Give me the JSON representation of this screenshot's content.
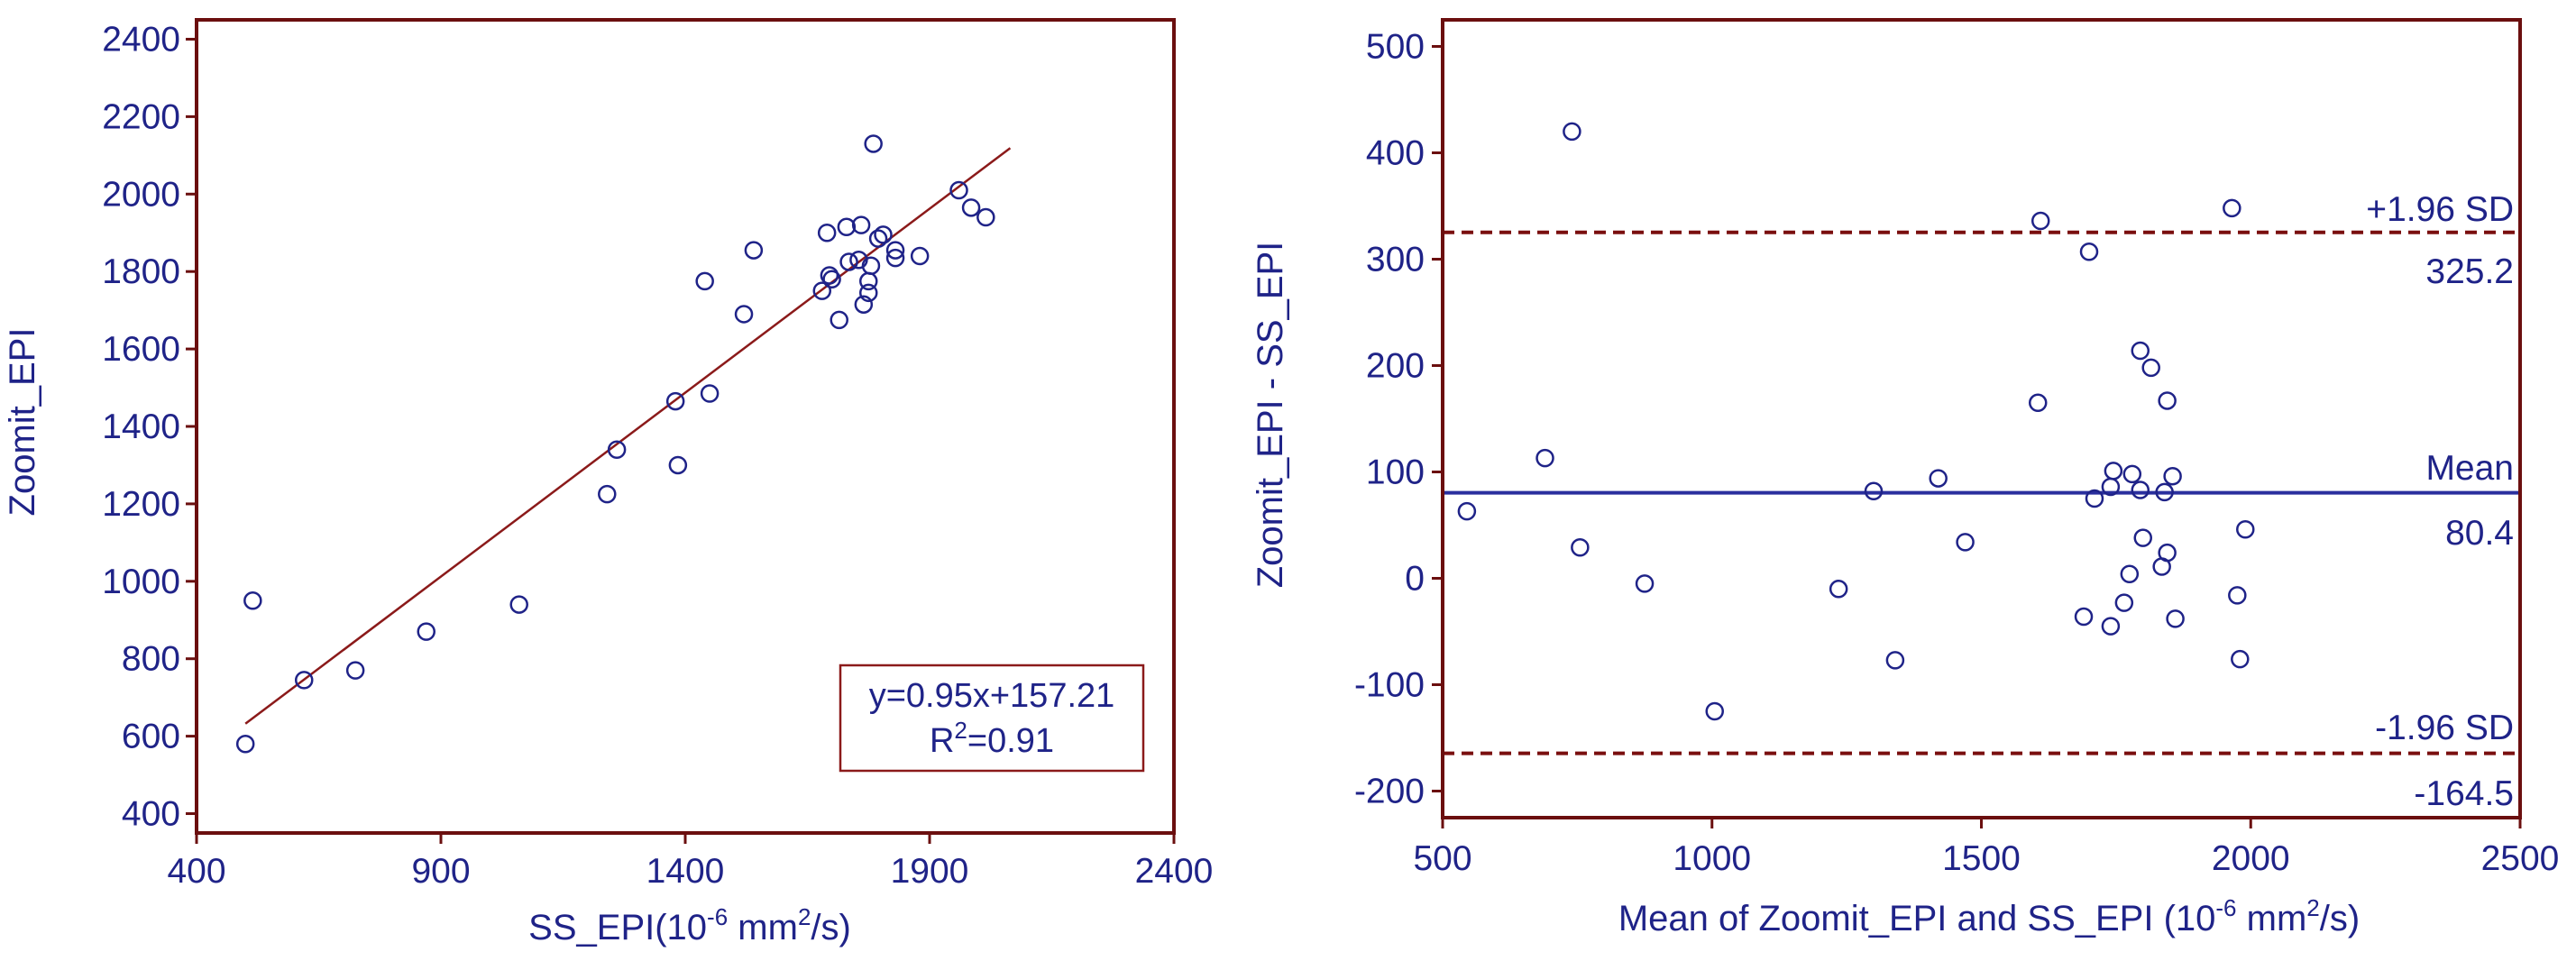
{
  "colors": {
    "frame": "#6b0f0f",
    "text": "#1f2388",
    "marker": "#1f2388",
    "regression_line": "#8b1a1a",
    "sd_line": "#7a0f0f",
    "mean_line": "#2a2f9e"
  },
  "chart_data": [
    {
      "type": "scatter",
      "name": "correlation",
      "xlabel_main": "SS_EPI(10",
      "xlabel_sup": "-6",
      "xlabel_mid": " mm",
      "xlabel_sup2": "2",
      "xlabel_end": "/s)",
      "ylabel": "Zoomit_EPI",
      "xlim": [
        400,
        2400
      ],
      "ylim": [
        350,
        2450
      ],
      "xticks": [
        "400",
        "900",
        "1400",
        "1900",
        "2400"
      ],
      "yticks": [
        "400",
        "600",
        "800",
        "1000",
        "1200",
        "1400",
        "1600",
        "1800",
        "2000",
        "2200",
        "2400"
      ],
      "regression": {
        "slope": 0.95,
        "intercept": 157.21,
        "x_range": [
          500,
          2065
        ]
      },
      "equation_line1": "y=0.95x+157.21",
      "equation_r_prefix": "R",
      "equation_r_sup": "2",
      "equation_r_value": "=0.91",
      "points": [
        [
          500,
          580
        ],
        [
          515,
          950
        ],
        [
          620,
          745
        ],
        [
          725,
          770
        ],
        [
          870,
          870
        ],
        [
          1060,
          940
        ],
        [
          1240,
          1225
        ],
        [
          1260,
          1340
        ],
        [
          1380,
          1465
        ],
        [
          1385,
          1300
        ],
        [
          1440,
          1775
        ],
        [
          1450,
          1485
        ],
        [
          1520,
          1690
        ],
        [
          1540,
          1855
        ],
        [
          1680,
          1750
        ],
        [
          1690,
          1900
        ],
        [
          1695,
          1790
        ],
        [
          1700,
          1780
        ],
        [
          1715,
          1675
        ],
        [
          1730,
          1915
        ],
        [
          1735,
          1825
        ],
        [
          1755,
          1830
        ],
        [
          1760,
          1920
        ],
        [
          1765,
          1715
        ],
        [
          1775,
          1775
        ],
        [
          1775,
          1745
        ],
        [
          1780,
          1815
        ],
        [
          1785,
          2130
        ],
        [
          1795,
          1885
        ],
        [
          1805,
          1895
        ],
        [
          1830,
          1835
        ],
        [
          1830,
          1855
        ],
        [
          1880,
          1840
        ],
        [
          1960,
          2010
        ],
        [
          1985,
          1965
        ],
        [
          2015,
          1940
        ]
      ]
    },
    {
      "type": "scatter",
      "name": "bland-altman",
      "xlabel_main": "Mean of Zoomit_EPI and SS_EPI (10",
      "xlabel_sup": "-6",
      "xlabel_mid": " mm",
      "xlabel_sup2": "2",
      "xlabel_end": "/s)",
      "ylabel": "Zoomit_EPI - SS_EPI",
      "xlim": [
        500,
        2500
      ],
      "ylim": [
        -225,
        525
      ],
      "xticks": [
        "500",
        "1000",
        "1500",
        "2000",
        "2500"
      ],
      "yticks": [
        "-200",
        "-100",
        "0",
        "100",
        "200",
        "300",
        "400",
        "500"
      ],
      "mean": 80.4,
      "upper_loa": 325.2,
      "lower_loa": -164.5,
      "mean_label": "Mean",
      "mean_value": "80.4",
      "upper_label": "+1.96 SD",
      "upper_value": "325.2",
      "lower_label": "-1.96 SD",
      "lower_value": "-164.5",
      "points": [
        [
          545,
          63
        ],
        [
          690,
          113
        ],
        [
          740,
          420
        ],
        [
          755,
          29
        ],
        [
          875,
          -5
        ],
        [
          1005,
          -125
        ],
        [
          1235,
          -10
        ],
        [
          1300,
          82
        ],
        [
          1340,
          -77
        ],
        [
          1420,
          94
        ],
        [
          1470,
          34
        ],
        [
          1605,
          165
        ],
        [
          1610,
          336
        ],
        [
          1690,
          -36
        ],
        [
          1700,
          307
        ],
        [
          1710,
          75
        ],
        [
          1740,
          -45
        ],
        [
          1740,
          86
        ],
        [
          1745,
          101
        ],
        [
          1765,
          -23
        ],
        [
          1775,
          4
        ],
        [
          1780,
          98
        ],
        [
          1795,
          214
        ],
        [
          1795,
          83
        ],
        [
          1800,
          38
        ],
        [
          1815,
          198
        ],
        [
          1835,
          11
        ],
        [
          1840,
          81
        ],
        [
          1845,
          167
        ],
        [
          1845,
          24
        ],
        [
          1855,
          96
        ],
        [
          1860,
          -38
        ],
        [
          1965,
          348
        ],
        [
          1975,
          -16
        ],
        [
          1980,
          -76
        ],
        [
          1990,
          46
        ]
      ]
    }
  ]
}
